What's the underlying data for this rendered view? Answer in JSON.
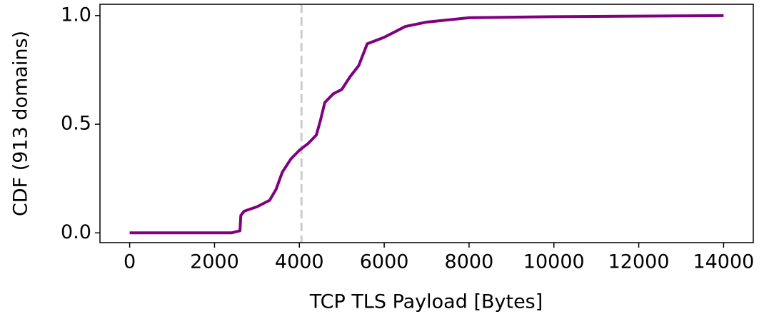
{
  "chart_data": {
    "type": "line",
    "xlabel": "TCP TLS Payload [Bytes]",
    "ylabel": "CDF (913 domains)",
    "x": [
      0,
      2400,
      2600,
      2620,
      2700,
      3000,
      3300,
      3450,
      3600,
      3800,
      4000,
      4200,
      4400,
      4500,
      4600,
      4800,
      5000,
      5200,
      5400,
      5600,
      6000,
      6500,
      7000,
      8000,
      10000,
      14000
    ],
    "series": [
      {
        "name": "CDF",
        "color": "#800080",
        "values": [
          0,
          0,
          0.01,
          0.08,
          0.1,
          0.12,
          0.15,
          0.2,
          0.28,
          0.34,
          0.38,
          0.41,
          0.45,
          0.52,
          0.6,
          0.64,
          0.66,
          0.72,
          0.77,
          0.87,
          0.9,
          0.95,
          0.97,
          0.99,
          0.995,
          1.0
        ]
      }
    ],
    "xlim": [
      -700,
      14700
    ],
    "ylim": [
      -0.045,
      1.052
    ],
    "xticks": [
      0,
      2000,
      4000,
      6000,
      8000,
      10000,
      12000,
      14000
    ],
    "yticks": [
      {
        "value": 0,
        "label": "0.0"
      },
      {
        "value": 0.5,
        "label": "0.5"
      },
      {
        "value": 1,
        "label": "1.0"
      }
    ],
    "vline": 4050,
    "vline_color": "#cccccc",
    "grid": false
  }
}
